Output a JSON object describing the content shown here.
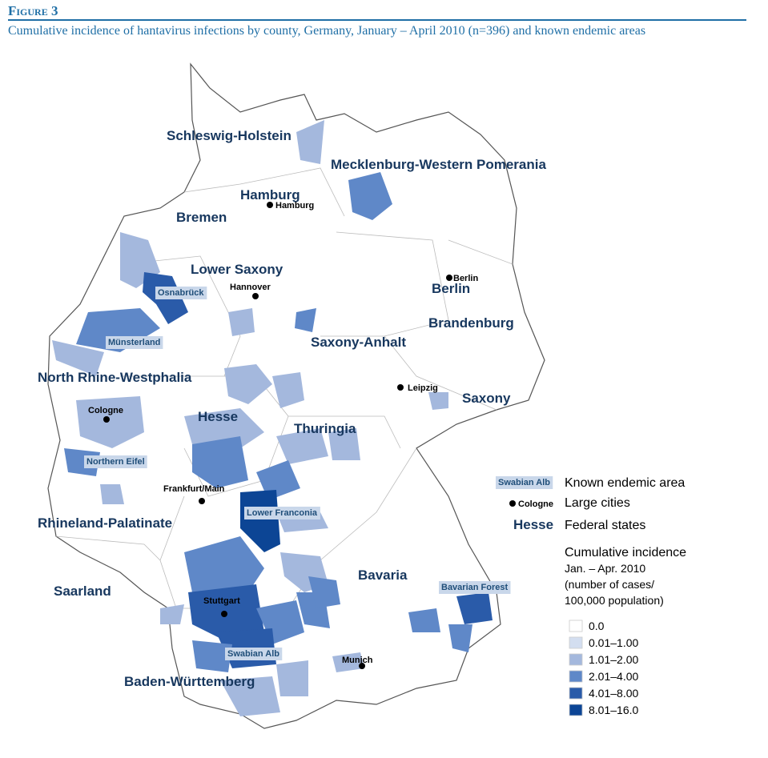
{
  "header": {
    "figure": "Figure 3",
    "title": "Cumulative incidence of hantavirus infections by county, Germany, January – April 2010 (n=396) and known endemic areas"
  },
  "map": {
    "states": [
      "Schleswig-Holstein",
      "Mecklenburg-Western Pomerania",
      "Hamburg",
      "Bremen",
      "Lower Saxony",
      "Berlin",
      "Brandenburg",
      "Saxony-Anhalt",
      "North Rhine-Westphalia",
      "Saxony",
      "Hesse",
      "Thuringia",
      "Rhineland-Palatinate",
      "Bavaria",
      "Saarland",
      "Baden-Württemberg"
    ],
    "cities": [
      "Hamburg",
      "Berlin",
      "Hannover",
      "Leipzig",
      "Cologne",
      "Frankfurt/Main",
      "Stuttgart",
      "Munich"
    ],
    "endemic_areas": [
      "Osnabrück",
      "Münsterland",
      "Northern Eifel",
      "Lower Franconia",
      "Bavarian Forest",
      "Swabian Alb"
    ]
  },
  "legend": {
    "endemic_example": "Swabian Alb",
    "endemic_text": "Known endemic area",
    "city_example": "Cologne",
    "city_text": "Large cities",
    "state_example": "Hesse",
    "state_text": "Federal states",
    "title_lines": [
      "Cumulative incidence",
      "Jan. – Apr. 2010",
      "(number of cases/",
      "100,000 population)"
    ],
    "classes": [
      {
        "label": "0.0",
        "color": "#ffffff"
      },
      {
        "label": "0.01–1.00",
        "color": "#d3def0"
      },
      {
        "label": "1.01–2.00",
        "color": "#a4b8dd"
      },
      {
        "label": "2.01–4.00",
        "color": "#5f88c8"
      },
      {
        "label": "4.01–8.00",
        "color": "#2a5ba9"
      },
      {
        "label": "8.01–16.0",
        "color": "#0c4595"
      }
    ]
  }
}
